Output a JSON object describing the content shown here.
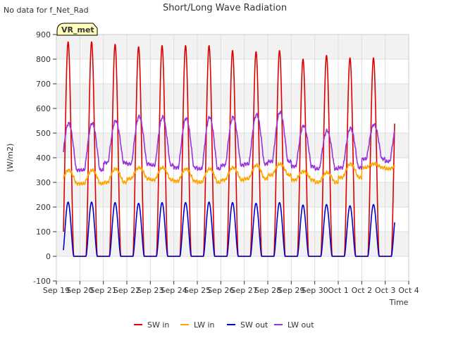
{
  "chart_data": {
    "type": "line",
    "title": "Short/Long Wave Radiation",
    "no_data_note": "No data for f_Net_Rad",
    "site_badge": "VR_met",
    "xlabel": "Time",
    "ylabel": "(W/m2)",
    "ylim": [
      -100,
      900
    ],
    "yticks": [
      -100,
      0,
      100,
      200,
      300,
      400,
      500,
      600,
      700,
      800,
      900
    ],
    "xlim": [
      0,
      15
    ],
    "xticks": [
      0,
      1,
      2,
      3,
      4,
      5,
      6,
      7,
      8,
      9,
      10,
      11,
      12,
      13,
      14,
      15
    ],
    "xtick_labels": [
      "Sep 19",
      "Sep 20",
      "Sep 21",
      "Sep 22",
      "Sep 23",
      "Sep 24",
      "Sep 25",
      "Sep 26",
      "Sep 27",
      "Sep 28",
      "Sep 29",
      "Sep 30",
      "Oct 1",
      "Oct 2",
      "Oct 3",
      "Oct 4"
    ],
    "day_range": [
      0.3,
      14.4
    ],
    "days": [
      1,
      2,
      3,
      4,
      5,
      6,
      7,
      8,
      9,
      10,
      11,
      12,
      13,
      14
    ],
    "series": [
      {
        "name": "SW in",
        "color": "#dd0000",
        "night": 0,
        "peaks": [
          870,
          860,
          850,
          855,
          855,
          855,
          835,
          830,
          835,
          800,
          815,
          805,
          805,
          780
        ]
      },
      {
        "name": "LW in",
        "color": "#ffa500",
        "night": [
          295,
          300,
          315,
          310,
          305,
          300,
          310,
          315,
          330,
          310,
          300,
          320,
          360,
          355
        ],
        "peaks": [
          350,
          355,
          360,
          360,
          355,
          355,
          360,
          370,
          375,
          345,
          340,
          375,
          375,
          365
        ]
      },
      {
        "name": "SW out",
        "color": "#0000cc",
        "night": 0,
        "peaks": [
          220,
          218,
          215,
          218,
          218,
          220,
          218,
          215,
          218,
          208,
          210,
          205,
          210,
          200
        ]
      },
      {
        "name": "LW out",
        "color": "#9933dd",
        "night": [
          350,
          380,
          375,
          370,
          360,
          355,
          370,
          375,
          385,
          365,
          355,
          360,
          395,
          385
        ],
        "peaks": [
          540,
          550,
          568,
          565,
          560,
          565,
          565,
          575,
          585,
          530,
          510,
          520,
          535,
          540
        ]
      }
    ]
  }
}
